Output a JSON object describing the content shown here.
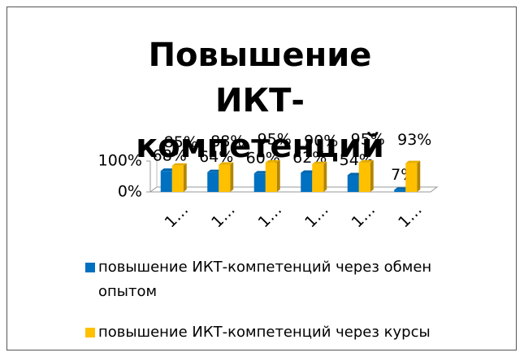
{
  "chart_data": {
    "type": "bar",
    "title": "Повышение ИКТ-компетенций",
    "categories": [
      "1…",
      "1…",
      "1…",
      "1…",
      "1…",
      "1…"
    ],
    "series": [
      {
        "name": "повышение ИКТ-компетенций через обмен опытом",
        "color": "#0070c0",
        "values": [
          68,
          64,
          60,
          62,
          54,
          7
        ],
        "value_labels": [
          "68%",
          "64%",
          "60%",
          "62%",
          "54%",
          "7%"
        ]
      },
      {
        "name": "повышение ИКТ-компетенций через курсы",
        "color": "#ffc000",
        "values": [
          85,
          88,
          95,
          90,
          95,
          93
        ],
        "value_labels": [
          "85%",
          "88%",
          "95%",
          "90%",
          "95%",
          "93%"
        ]
      }
    ],
    "ylim": [
      0,
      100
    ],
    "yticks": [
      {
        "value": 0,
        "label": "0%"
      },
      {
        "value": 100,
        "label": "100%"
      }
    ],
    "grid": false
  }
}
